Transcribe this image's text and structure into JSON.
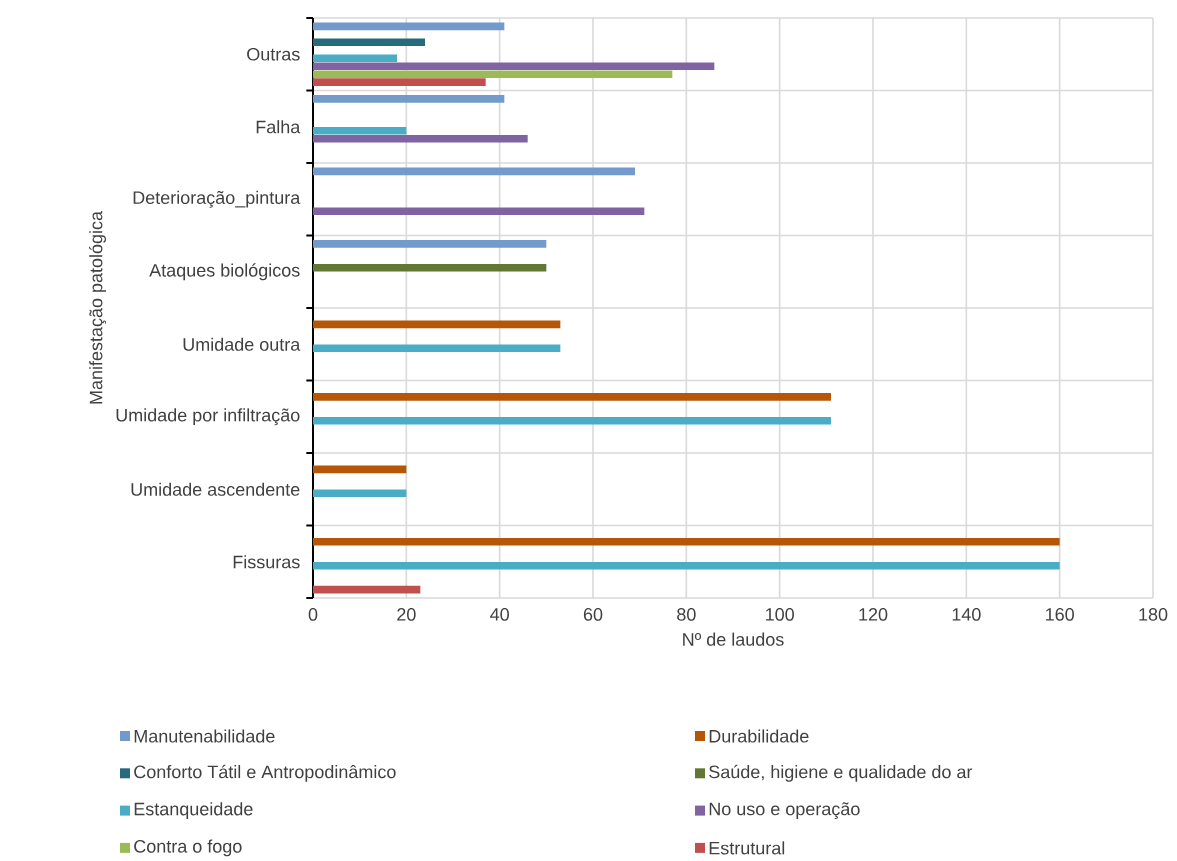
{
  "chart_data": {
    "type": "bar",
    "orientation": "horizontal",
    "xlabel": "Nº de laudos",
    "ylabel": "Manifestação patológica",
    "categories": [
      "Outras",
      "Falha",
      "Deterioração_pintura",
      "Ataques biológicos",
      "Umidade outra",
      "Umidade por infiltração",
      "Umidade ascendente",
      "Fissuras"
    ],
    "series": [
      {
        "name": "Manutenabilidade",
        "color": "#729aca",
        "values": [
          41,
          41,
          69,
          50,
          null,
          null,
          null,
          null
        ]
      },
      {
        "name": "Durabilidade",
        "color": "#b65708",
        "values": [
          null,
          null,
          null,
          null,
          53,
          111,
          20,
          160
        ]
      },
      {
        "name": "Conforto Tátil e Antropodinâmico",
        "color": "#276a7c",
        "values": [
          24,
          null,
          null,
          null,
          null,
          null,
          null,
          null
        ]
      },
      {
        "name": "Saúde, higiene e qualidade do ar",
        "color": "#617733",
        "values": [
          null,
          null,
          null,
          50,
          null,
          null,
          null,
          null
        ]
      },
      {
        "name": "Estanqueidade",
        "color": "#4bacc6",
        "values": [
          18,
          20,
          null,
          null,
          53,
          111,
          20,
          160
        ]
      },
      {
        "name": "No uso e operação",
        "color": "#8064a2",
        "values": [
          86,
          46,
          71,
          null,
          null,
          null,
          null,
          null
        ]
      },
      {
        "name": "Contra o fogo",
        "color": "#9bbb59",
        "values": [
          77,
          null,
          null,
          null,
          null,
          null,
          null,
          null
        ]
      },
      {
        "name": "Estrutural",
        "color": "#c0504d",
        "values": [
          37,
          null,
          null,
          null,
          null,
          null,
          null,
          23
        ]
      }
    ],
    "xlim": [
      0,
      180
    ],
    "xticks": [
      0,
      20,
      40,
      60,
      80,
      100,
      120,
      140,
      160,
      180
    ],
    "grid": true,
    "legend": "bottom"
  }
}
